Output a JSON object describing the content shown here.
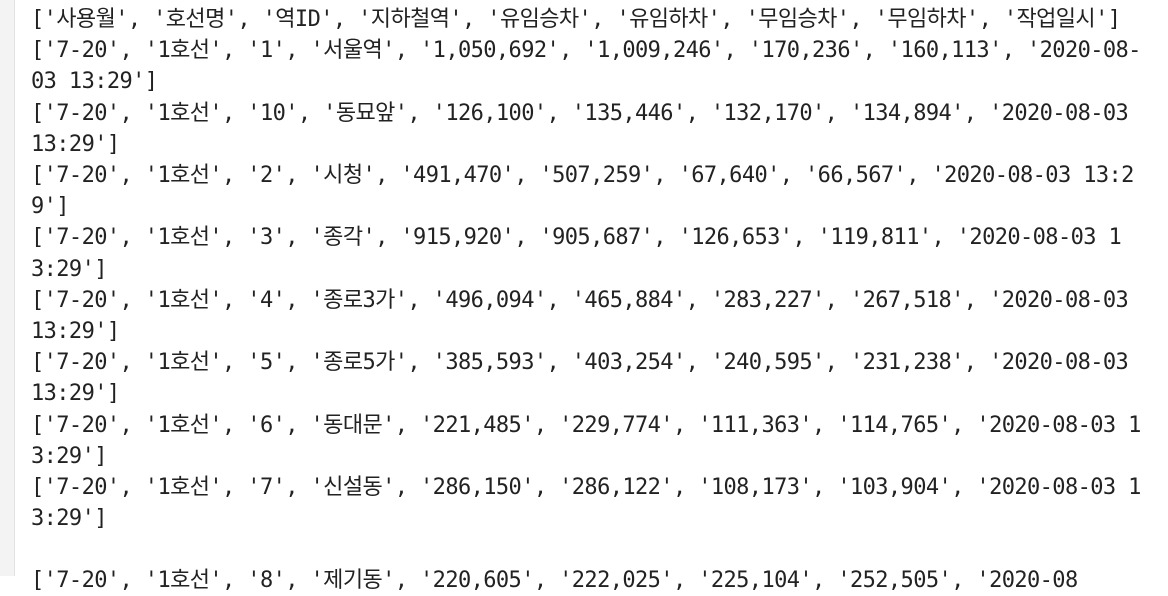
{
  "output": {
    "lines": [
      "['사용월', '호선명', '역ID', '지하철역', '유임승차', '유임하차', '무임승차', '무임하차', '작업일시']",
      "['7-20', '1호선', '1', '서울역', '1,050,692', '1,009,246', '170,236', '160,113', '2020-08-03 13:29']",
      "['7-20', '1호선', '10', '동묘앞', '126,100', '135,446', '132,170', '134,894', '2020-08-03 13:29']",
      "['7-20', '1호선', '2', '시청', '491,470', '507,259', '67,640', '66,567', '2020-08-03 13:29']",
      "['7-20', '1호선', '3', '종각', '915,920', '905,687', '126,653', '119,811', '2020-08-03 13:29']",
      "['7-20', '1호선', '4', '종로3가', '496,094', '465,884', '283,227', '267,518', '2020-08-03 13:29']",
      "['7-20', '1호선', '5', '종로5가', '385,593', '403,254', '240,595', '231,238', '2020-08-03 13:29']",
      "['7-20', '1호선', '6', '동대문', '221,485', '229,774', '111,363', '114,765', '2020-08-03 13:29']",
      "['7-20', '1호선', '7', '신설동', '286,150', '286,122', '108,173', '103,904', '2020-08-03 13:29']"
    ],
    "partial_line": "['7-20', '1호선', '8', '제기동', '220,605', '222,025', '225,104', '252,505', '2020-08"
  }
}
